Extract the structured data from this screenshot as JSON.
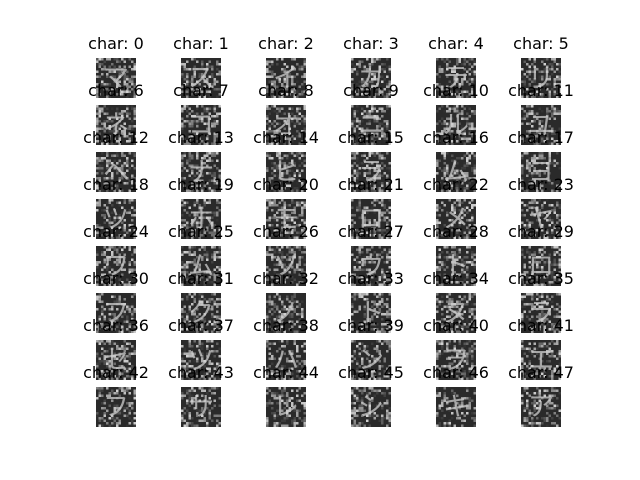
{
  "figure": {
    "colormap": "gray",
    "background": "#ffffff",
    "panels": [
      {
        "title": "char: 0",
        "glyph": "マ"
      },
      {
        "title": "char: 1",
        "glyph": "ス"
      },
      {
        "title": "char: 2",
        "glyph": "イ"
      },
      {
        "title": "char: 3",
        "glyph": "カ"
      },
      {
        "title": "char: 4",
        "glyph": "テ"
      },
      {
        "title": "char: 5",
        "glyph": "リ"
      },
      {
        "title": "char: 6",
        "glyph": "ネ"
      },
      {
        "title": "char: 7",
        "glyph": "コ"
      },
      {
        "title": "char: 8",
        "glyph": "オ"
      },
      {
        "title": "char: 9",
        "glyph": "ニ"
      },
      {
        "title": "char: 10",
        "glyph": "ル"
      },
      {
        "title": "char: 11",
        "glyph": "ユ"
      },
      {
        "title": "char: 12",
        "glyph": "ヘ"
      },
      {
        "title": "char: 13",
        "glyph": "ナ"
      },
      {
        "title": "char: 14",
        "glyph": "ヒ"
      },
      {
        "title": "char: 15",
        "glyph": "ラ"
      },
      {
        "title": "char: 16",
        "glyph": "ム"
      },
      {
        "title": "char: 17",
        "glyph": "ヨ"
      },
      {
        "title": "char: 18",
        "glyph": "ツ"
      },
      {
        "title": "char: 19",
        "glyph": "ホ"
      },
      {
        "title": "char: 20",
        "glyph": "モ"
      },
      {
        "title": "char: 21",
        "glyph": "ロ"
      },
      {
        "title": "char: 22",
        "glyph": "メ"
      },
      {
        "title": "char: 23",
        "glyph": "ヤ"
      },
      {
        "title": "char: 24",
        "glyph": "ワ"
      },
      {
        "title": "char: 25",
        "glyph": "ム"
      },
      {
        "title": "char: 26",
        "glyph": "ソ"
      },
      {
        "title": "char: 27",
        "glyph": "ウ"
      },
      {
        "title": "char: 28",
        "glyph": "ト"
      },
      {
        "title": "char: 29",
        "glyph": "ロ"
      },
      {
        "title": "char: 30",
        "glyph": "フ"
      },
      {
        "title": "char: 31",
        "glyph": "ク"
      },
      {
        "title": "char: 32",
        "glyph": "ノ"
      },
      {
        "title": "char: 33",
        "glyph": "ト"
      },
      {
        "title": "char: 34",
        "glyph": "ヌ"
      },
      {
        "title": "char: 35",
        "glyph": "ラ"
      },
      {
        "title": "char: 36",
        "glyph": "セ"
      },
      {
        "title": "char: 37",
        "glyph": "ツ"
      },
      {
        "title": "char: 38",
        "glyph": "ハ"
      },
      {
        "title": "char: 39",
        "glyph": "ン"
      },
      {
        "title": "char: 40",
        "glyph": "ヲ"
      },
      {
        "title": "char: 41",
        "glyph": "エ"
      },
      {
        "title": "char: 42",
        "glyph": "フ"
      },
      {
        "title": "char: 43",
        "glyph": "サ"
      },
      {
        "title": "char: 44",
        "glyph": "レ"
      },
      {
        "title": "char: 45",
        "glyph": "シ"
      },
      {
        "title": "char: 46",
        "glyph": "キ"
      },
      {
        "title": "char: 47",
        "glyph": "ア"
      }
    ]
  }
}
